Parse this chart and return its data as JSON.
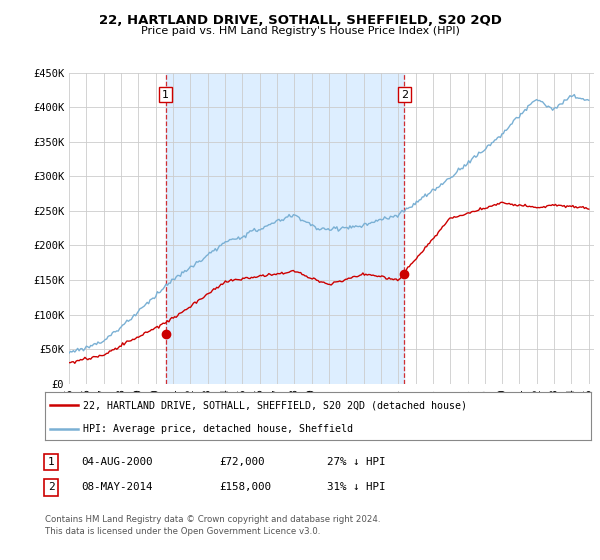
{
  "title": "22, HARTLAND DRIVE, SOTHALL, SHEFFIELD, S20 2QD",
  "subtitle": "Price paid vs. HM Land Registry's House Price Index (HPI)",
  "ylim": [
    0,
    450000
  ],
  "yticks": [
    0,
    50000,
    100000,
    150000,
    200000,
    250000,
    300000,
    350000,
    400000,
    450000
  ],
  "ytick_labels": [
    "£0",
    "£50K",
    "£100K",
    "£150K",
    "£200K",
    "£250K",
    "£300K",
    "£350K",
    "£400K",
    "£450K"
  ],
  "hpi_color": "#7ab0d4",
  "price_color": "#cc0000",
  "shade_color": "#ddeeff",
  "transaction1_year": 2000.58,
  "transaction1_price": 72000,
  "transaction2_year": 2014.35,
  "transaction2_price": 158000,
  "legend_entry1": "22, HARTLAND DRIVE, SOTHALL, SHEFFIELD, S20 2QD (detached house)",
  "legend_entry2": "HPI: Average price, detached house, Sheffield",
  "footer1": "Contains HM Land Registry data © Crown copyright and database right 2024.",
  "footer2": "This data is licensed under the Open Government Licence v3.0.",
  "table_row1_num": "1",
  "table_row1_date": "04-AUG-2000",
  "table_row1_price": "£72,000",
  "table_row1_hpi": "27% ↓ HPI",
  "table_row2_num": "2",
  "table_row2_date": "08-MAY-2014",
  "table_row2_price": "£158,000",
  "table_row2_hpi": "31% ↓ HPI",
  "background_color": "#ffffff",
  "grid_color": "#cccccc"
}
